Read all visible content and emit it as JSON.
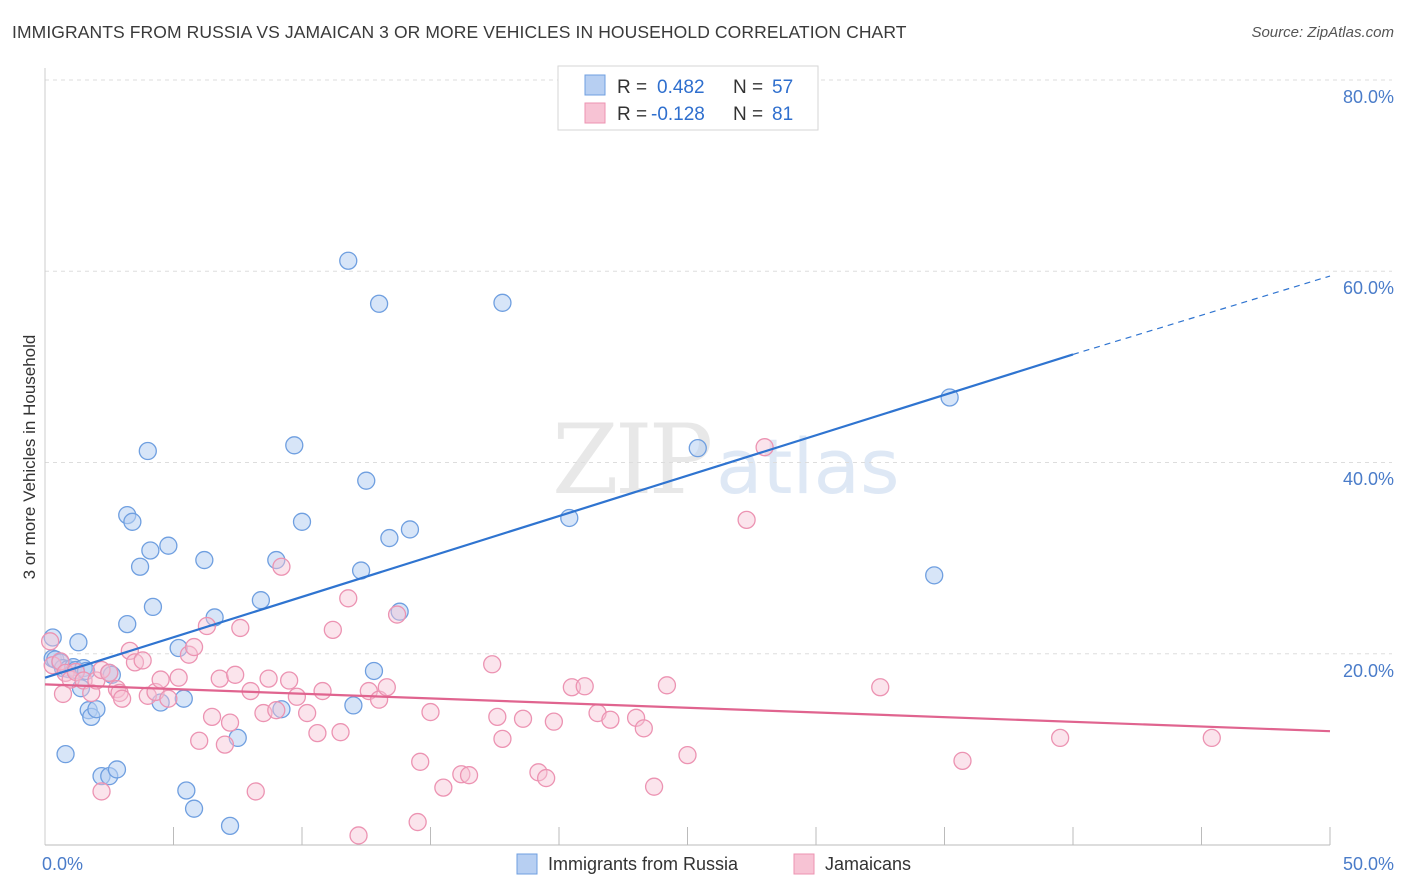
{
  "title": "IMMIGRANTS FROM RUSSIA VS JAMAICAN 3 OR MORE VEHICLES IN HOUSEHOLD CORRELATION CHART",
  "source": "Source: ZipAtlas.com",
  "watermark": {
    "zip": "ZIP",
    "atlas": "atlas"
  },
  "colors": {
    "russia_fill": "#b7cff2",
    "russia_stroke": "#6f9fe0",
    "russia_line": "#2f74d0",
    "jamaica_fill": "#f7c3d4",
    "jamaica_stroke": "#ec93b2",
    "jamaica_line": "#e0648f",
    "grid": "#dddddd",
    "tick_label": "#4a7cc9"
  },
  "legend": {
    "r_label": "R =",
    "n_label": "N =",
    "series": [
      {
        "r": "0.482",
        "n": "57"
      },
      {
        "r": "-0.128",
        "n": "81"
      }
    ]
  },
  "chart_data": {
    "type": "scatter",
    "title": "IMMIGRANTS FROM RUSSIA VS JAMAICAN 3 OR MORE VEHICLES IN HOUSEHOLD CORRELATION CHART",
    "xlabel": "",
    "ylabel": "3 or more Vehicles in Household",
    "xlim": [
      0,
      50
    ],
    "ylim": [
      0,
      80
    ],
    "x_tick_labels": [
      "0.0%",
      "50.0%"
    ],
    "y_ticks": [
      20,
      40,
      60,
      80
    ],
    "y_tick_labels": [
      "20.0%",
      "40.0%",
      "60.0%",
      "80.0%"
    ],
    "grid": true,
    "legend_position": "top-center",
    "series": [
      {
        "name": "Immigrants from Russia",
        "r": 0.482,
        "n": 57,
        "trend": {
          "x0": 0,
          "y0": 17.5,
          "x1": 40,
          "y1": 51.3,
          "dashed_to_x": 50,
          "dashed_to_y": 59.5
        },
        "points": [
          [
            0.3,
            21.7
          ],
          [
            0.3,
            19.5
          ],
          [
            0.4,
            19.4
          ],
          [
            0.6,
            19.1
          ],
          [
            0.7,
            18.5
          ],
          [
            0.8,
            9.5
          ],
          [
            0.9,
            18.4
          ],
          [
            1.1,
            18.6
          ],
          [
            1.2,
            18.3
          ],
          [
            1.3,
            21.2
          ],
          [
            1.4,
            16.4
          ],
          [
            1.5,
            18.5
          ],
          [
            1.6,
            18.2
          ],
          [
            1.7,
            14.1
          ],
          [
            1.8,
            13.4
          ],
          [
            2.0,
            14.2
          ],
          [
            2.5,
            18.0
          ],
          [
            2.6,
            17.8
          ],
          [
            2.2,
            7.2
          ],
          [
            2.5,
            7.2
          ],
          [
            2.8,
            7.9
          ],
          [
            3.2,
            23.1
          ],
          [
            3.2,
            34.5
          ],
          [
            3.4,
            33.8
          ],
          [
            3.7,
            29.1
          ],
          [
            4.0,
            41.2
          ],
          [
            4.1,
            30.8
          ],
          [
            4.2,
            24.9
          ],
          [
            4.5,
            14.9
          ],
          [
            4.8,
            31.3
          ],
          [
            5.2,
            20.6
          ],
          [
            5.4,
            15.3
          ],
          [
            5.5,
            5.7
          ],
          [
            5.8,
            3.8
          ],
          [
            6.2,
            29.8
          ],
          [
            6.6,
            23.8
          ],
          [
            7.2,
            2.0
          ],
          [
            7.5,
            11.2
          ],
          [
            8.4,
            25.6
          ],
          [
            9.0,
            29.8
          ],
          [
            9.2,
            14.2
          ],
          [
            9.7,
            41.8
          ],
          [
            10.0,
            33.8
          ],
          [
            11.8,
            61.1
          ],
          [
            12.0,
            14.6
          ],
          [
            12.3,
            28.7
          ],
          [
            12.5,
            38.1
          ],
          [
            12.8,
            18.2
          ],
          [
            13.0,
            56.6
          ],
          [
            13.4,
            32.1
          ],
          [
            13.8,
            24.4
          ],
          [
            14.2,
            33.0
          ],
          [
            17.8,
            56.7
          ],
          [
            20.4,
            34.2
          ],
          [
            25.4,
            41.5
          ],
          [
            34.6,
            28.2
          ],
          [
            35.2,
            46.8
          ]
        ]
      },
      {
        "name": "Jamaicans",
        "r": -0.128,
        "n": 81,
        "trend": {
          "x0": 0,
          "y0": 16.8,
          "x1": 50,
          "y1": 11.9
        },
        "points": [
          [
            0.2,
            21.3
          ],
          [
            0.3,
            18.8
          ],
          [
            0.6,
            19.2
          ],
          [
            0.7,
            15.8
          ],
          [
            0.8,
            18.0
          ],
          [
            1.0,
            17.3
          ],
          [
            1.2,
            18.1
          ],
          [
            1.5,
            17.2
          ],
          [
            1.8,
            15.9
          ],
          [
            2.0,
            17.2
          ],
          [
            2.2,
            18.3
          ],
          [
            2.2,
            5.6
          ],
          [
            2.5,
            18.0
          ],
          [
            2.8,
            16.3
          ],
          [
            2.9,
            15.9
          ],
          [
            3.0,
            15.3
          ],
          [
            3.3,
            20.3
          ],
          [
            3.5,
            19.1
          ],
          [
            3.8,
            19.3
          ],
          [
            4.0,
            15.6
          ],
          [
            4.3,
            16.0
          ],
          [
            4.5,
            17.3
          ],
          [
            4.8,
            15.3
          ],
          [
            5.2,
            17.5
          ],
          [
            5.6,
            19.9
          ],
          [
            5.8,
            20.7
          ],
          [
            6.0,
            10.9
          ],
          [
            6.3,
            22.9
          ],
          [
            6.5,
            13.4
          ],
          [
            6.8,
            17.4
          ],
          [
            7.0,
            10.5
          ],
          [
            7.2,
            12.8
          ],
          [
            7.4,
            17.8
          ],
          [
            7.6,
            22.7
          ],
          [
            8.0,
            16.1
          ],
          [
            8.2,
            5.6
          ],
          [
            8.5,
            13.8
          ],
          [
            8.7,
            17.4
          ],
          [
            9.0,
            14.1
          ],
          [
            9.2,
            29.1
          ],
          [
            9.5,
            17.2
          ],
          [
            9.8,
            15.5
          ],
          [
            10.2,
            13.8
          ],
          [
            10.6,
            11.7
          ],
          [
            10.8,
            16.1
          ],
          [
            11.2,
            22.5
          ],
          [
            11.5,
            11.8
          ],
          [
            11.8,
            25.8
          ],
          [
            12.2,
            1.0
          ],
          [
            12.6,
            16.1
          ],
          [
            13.0,
            15.2
          ],
          [
            13.3,
            16.5
          ],
          [
            13.7,
            24.1
          ],
          [
            14.5,
            2.4
          ],
          [
            14.6,
            8.7
          ],
          [
            15.0,
            13.9
          ],
          [
            15.5,
            6.0
          ],
          [
            16.2,
            7.4
          ],
          [
            16.5,
            7.3
          ],
          [
            17.4,
            18.9
          ],
          [
            17.6,
            13.4
          ],
          [
            17.8,
            11.1
          ],
          [
            18.6,
            13.2
          ],
          [
            19.2,
            7.6
          ],
          [
            19.5,
            7.0
          ],
          [
            19.8,
            12.9
          ],
          [
            20.5,
            16.5
          ],
          [
            21.0,
            16.6
          ],
          [
            21.5,
            13.8
          ],
          [
            22.0,
            13.1
          ],
          [
            23.0,
            13.3
          ],
          [
            23.3,
            12.2
          ],
          [
            23.7,
            6.1
          ],
          [
            24.2,
            16.7
          ],
          [
            25.0,
            9.4
          ],
          [
            27.3,
            34.0
          ],
          [
            28.0,
            41.6
          ],
          [
            32.5,
            16.5
          ],
          [
            35.7,
            8.8
          ],
          [
            39.5,
            11.2
          ],
          [
            45.4,
            11.2
          ]
        ]
      }
    ]
  }
}
